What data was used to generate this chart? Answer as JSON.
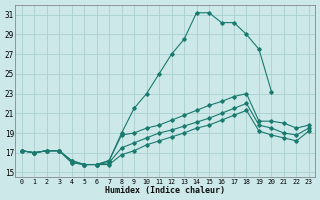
{
  "xlabel": "Humidex (Indice chaleur)",
  "bg_color": "#cce8e8",
  "grid_color": "#aacfcf",
  "line_color": "#1a7a6e",
  "xlim": [
    -0.5,
    23.5
  ],
  "ylim": [
    14.5,
    32
  ],
  "xticks": [
    0,
    1,
    2,
    3,
    4,
    5,
    6,
    7,
    8,
    9,
    10,
    11,
    12,
    13,
    14,
    15,
    16,
    17,
    18,
    19,
    20,
    21,
    22,
    23
  ],
  "yticks": [
    15,
    17,
    19,
    21,
    23,
    25,
    27,
    29,
    31
  ],
  "curve1_x": [
    0,
    1,
    2,
    3,
    4,
    5,
    6,
    7,
    8,
    9,
    10,
    11,
    12,
    13,
    14,
    15,
    16,
    17,
    18,
    19,
    20
  ],
  "curve1_y": [
    17.2,
    17.0,
    17.2,
    17.2,
    16.0,
    15.8,
    15.8,
    16.2,
    19.0,
    21.5,
    23.0,
    25.0,
    27.0,
    28.5,
    31.2,
    31.2,
    30.2,
    30.2,
    29.0,
    27.5,
    23.2
  ],
  "curve2_x": [
    0,
    1,
    2,
    3,
    4,
    5,
    6,
    7,
    8,
    9,
    10,
    11,
    12,
    13,
    14,
    15,
    16,
    17,
    18,
    19,
    20,
    21,
    22,
    23
  ],
  "curve2_y": [
    17.2,
    17.0,
    17.2,
    17.2,
    16.2,
    15.8,
    15.8,
    16.2,
    18.8,
    19.0,
    19.5,
    19.8,
    20.3,
    20.8,
    21.3,
    21.8,
    22.2,
    22.7,
    23.0,
    20.2,
    20.2,
    20.0,
    19.5,
    19.8
  ],
  "curve3_x": [
    0,
    1,
    2,
    3,
    4,
    5,
    6,
    7,
    8,
    9,
    10,
    11,
    12,
    13,
    14,
    15,
    16,
    17,
    18,
    19,
    20,
    21,
    22,
    23
  ],
  "curve3_y": [
    17.2,
    17.0,
    17.2,
    17.2,
    16.2,
    15.8,
    15.8,
    16.0,
    17.5,
    18.0,
    18.5,
    19.0,
    19.3,
    19.7,
    20.1,
    20.5,
    21.0,
    21.5,
    22.0,
    19.8,
    19.5,
    19.0,
    18.8,
    19.5
  ],
  "curve4_x": [
    0,
    1,
    2,
    3,
    4,
    5,
    6,
    7,
    8,
    9,
    10,
    11,
    12,
    13,
    14,
    15,
    16,
    17,
    18,
    19,
    20,
    21,
    22,
    23
  ],
  "curve4_y": [
    17.2,
    17.0,
    17.2,
    17.2,
    16.0,
    15.8,
    15.8,
    15.8,
    16.8,
    17.2,
    17.8,
    18.2,
    18.6,
    19.0,
    19.5,
    19.8,
    20.3,
    20.8,
    21.3,
    19.2,
    18.8,
    18.5,
    18.2,
    19.2
  ]
}
